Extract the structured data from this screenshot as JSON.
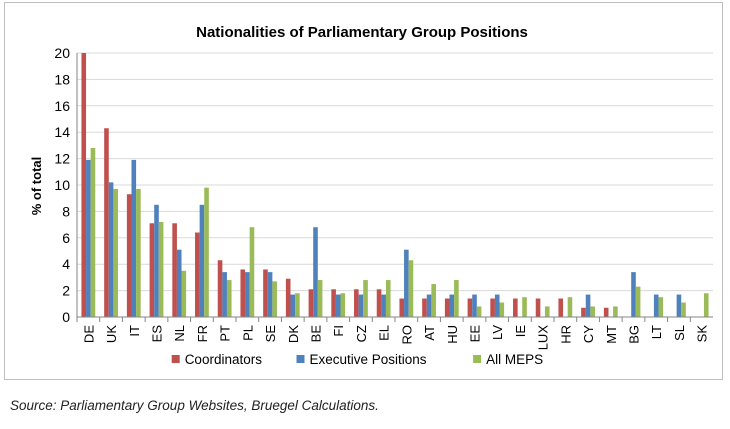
{
  "chart_data": {
    "type": "bar",
    "title": "Nationalities of Parliamentary Group Positions",
    "xlabel": "",
    "ylabel": "% of total",
    "ylim": [
      0,
      20
    ],
    "yticks": [
      0,
      2,
      4,
      6,
      8,
      10,
      12,
      14,
      16,
      18,
      20
    ],
    "grid": true,
    "legend": "bottom",
    "categories": [
      "DE",
      "UK",
      "IT",
      "ES",
      "NL",
      "FR",
      "PT",
      "PL",
      "SE",
      "DK",
      "BE",
      "FI",
      "CZ",
      "EL",
      "RO",
      "AT",
      "HU",
      "EE",
      "LV",
      "IE",
      "LUX",
      "HR",
      "CY",
      "MT",
      "BG",
      "LT",
      "SL",
      "SK"
    ],
    "series": [
      {
        "name": "Coordinators",
        "color": "#c0504d",
        "values": [
          20,
          14.3,
          9.3,
          7.1,
          7.1,
          6.4,
          4.3,
          3.6,
          3.6,
          2.9,
          2.1,
          2.1,
          2.1,
          2.1,
          1.4,
          1.4,
          1.4,
          1.4,
          1.4,
          1.4,
          1.4,
          1.4,
          0.7,
          0.7,
          0,
          0,
          0,
          0
        ]
      },
      {
        "name": "Executive Positions",
        "color": "#4f81bd",
        "values": [
          11.9,
          10.2,
          11.9,
          8.5,
          5.1,
          8.5,
          3.4,
          3.4,
          3.4,
          1.7,
          6.8,
          1.7,
          1.7,
          1.7,
          5.1,
          1.7,
          1.7,
          1.7,
          1.7,
          0,
          0,
          0,
          1.7,
          0,
          3.4,
          1.7,
          1.7,
          0
        ]
      },
      {
        "name": "All MEPS",
        "color": "#9bbb59",
        "values": [
          12.8,
          9.7,
          9.7,
          7.2,
          3.5,
          9.8,
          2.8,
          6.8,
          2.7,
          1.8,
          2.8,
          1.8,
          2.8,
          2.8,
          4.3,
          2.5,
          2.8,
          0.8,
          1.1,
          1.5,
          0.8,
          1.5,
          0.8,
          0.8,
          2.3,
          1.5,
          1.1,
          1.8
        ]
      }
    ]
  },
  "source_note": "Source: Parliamentary Group Websites, Bruegel Calculations."
}
